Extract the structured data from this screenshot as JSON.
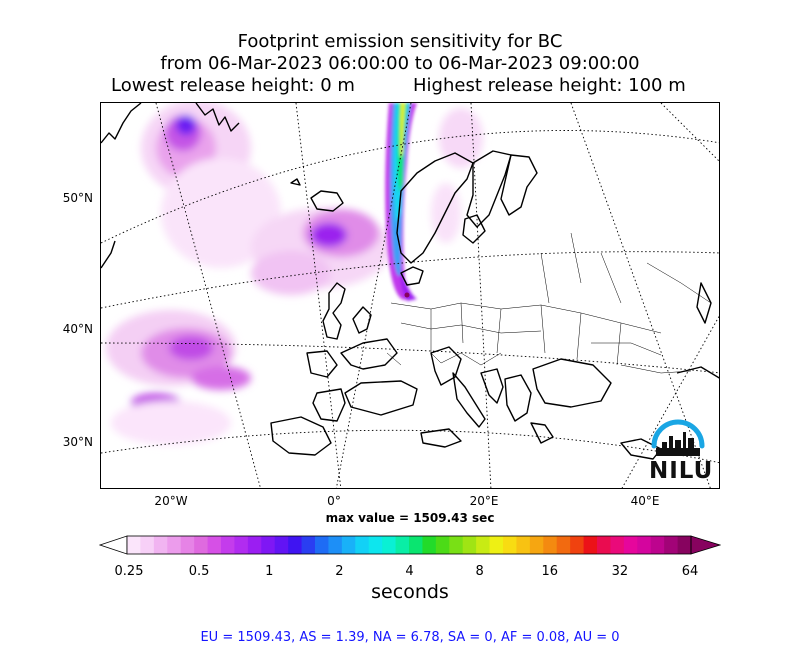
{
  "title": {
    "line1": "Footprint emission sensitivity for BC",
    "line2": "from 06-Mar-2023 06:00:00 to 06-Mar-2023 09:00:00",
    "lowest": "Lowest release height: 0 m",
    "highest": "Highest release height: 100 m"
  },
  "map": {
    "projection": "conic",
    "gridlines": "dotted",
    "lat_labels": [
      "50°N",
      "40°N",
      "30°N"
    ],
    "lon_labels": [
      "20°W",
      "0°",
      "20°E",
      "40°E"
    ]
  },
  "max_value": "max value = 1509.43 sec",
  "colorbar": {
    "unit": "seconds",
    "tick_labels": [
      "0.25",
      "0.5",
      "1",
      "2",
      "4",
      "8",
      "16",
      "32",
      "64"
    ],
    "colors": [
      "#fbe5fb",
      "#f7d0f7",
      "#f1b4f1",
      "#ec9cec",
      "#e683e6",
      "#df6adf",
      "#d650e6",
      "#c43cec",
      "#b12cf0",
      "#9b1ef2",
      "#7f17f4",
      "#6214f4",
      "#3f14f2",
      "#2a3ef2",
      "#1e6cf5",
      "#1d8ff7",
      "#19b1f8",
      "#12d1f6",
      "#0de6ee",
      "#0af0d4",
      "#09eea6",
      "#0ae570",
      "#22db2a",
      "#4cdb17",
      "#79e015",
      "#a0e414",
      "#c8eb14",
      "#eef014",
      "#f8dc12",
      "#f8c212",
      "#f6a611",
      "#f48a10",
      "#f26a10",
      "#f0420f",
      "#ec1218",
      "#ea0c50",
      "#ea0a7a",
      "#e6069c",
      "#d4059e",
      "#bd048e",
      "#a20377",
      "#87035f"
    ],
    "extend": "both"
  },
  "stats": "EU = 1509.43,  AS = 1.39,  NA = 6.78,  SA = 0,  AF = 0.08,  AU = 0",
  "logo": "NILU"
}
